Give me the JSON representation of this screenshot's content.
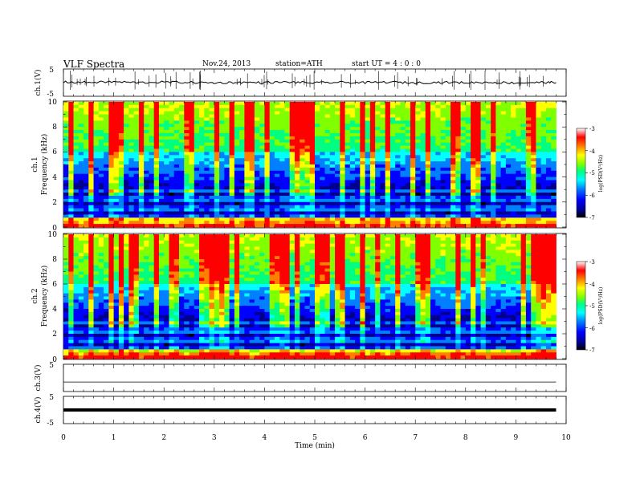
{
  "header": {
    "title": "VLF  Spectra",
    "date": "Nov.24, 2013",
    "station": "station=ATH",
    "start": "start  UT  =   4  : 0  : 0"
  },
  "colors": {
    "colormap": [
      "#000000",
      "#00008b",
      "#0000ff",
      "#0080ff",
      "#00ffff",
      "#00ff80",
      "#80ff00",
      "#ffff00",
      "#ff8000",
      "#ff0000",
      "#ffffff"
    ]
  },
  "chart_data": [
    {
      "type": "line",
      "panel": "ch1",
      "ylabel": "ch.1(V)",
      "ylim": [
        -5,
        5
      ],
      "yticks": [
        "5",
        "-5"
      ],
      "x": [
        0,
        0.5,
        1,
        1.5,
        2,
        2.5,
        3,
        3.5,
        4,
        4.5,
        5,
        5.5,
        6,
        6.5,
        7,
        7.5,
        8,
        8.5,
        9,
        9.5,
        9.8
      ],
      "values": [
        0.2,
        0.1,
        0.3,
        0.0,
        0.2,
        0.1,
        -0.1,
        0.1,
        0.0,
        0.2,
        -0.1,
        0.1,
        0.0,
        0.2,
        -0.1,
        0.1,
        0.0,
        0.1,
        -0.1,
        0.1,
        0.0
      ]
    },
    {
      "type": "heatmap",
      "panel": "ch1-spectrogram",
      "ylabel_channel": "ch.1",
      "ylabel": "Frequency  (kHz)",
      "ylim": [
        0,
        10
      ],
      "yticks": [
        "0",
        "2",
        "4",
        "6",
        "8",
        "10"
      ],
      "xlim": [
        0,
        9.8
      ],
      "colorbar_label": "log(PSD(V²/Hz)",
      "colorbar_range": [
        -7,
        -3
      ],
      "colorbar_ticks": [
        "-3",
        "-4",
        "-5",
        "-6",
        "-7"
      ]
    },
    {
      "type": "heatmap",
      "panel": "ch2-spectrogram",
      "ylabel_channel": "ch.2",
      "ylabel": "Frequency  (kHz)",
      "ylim": [
        0,
        10
      ],
      "yticks": [
        "0",
        "2",
        "4",
        "6",
        "8",
        "10"
      ],
      "xlim": [
        0,
        9.8
      ],
      "colorbar_label": "log(PSD(V²/Hz)",
      "colorbar_range": [
        -7,
        -3
      ],
      "colorbar_ticks": [
        "-3",
        "-4",
        "-5",
        "-6",
        "-7"
      ]
    },
    {
      "type": "line",
      "panel": "ch3",
      "ylabel": "ch.3(V)",
      "ylim": [
        -5,
        5
      ],
      "yticks": [
        "5"
      ],
      "x": [
        0,
        9.8
      ],
      "values": [
        -1.5,
        -1.5
      ]
    },
    {
      "type": "line",
      "panel": "ch4",
      "ylabel": "ch.4(V)",
      "ylim": [
        -5,
        5
      ],
      "yticks": [
        "5",
        "-5"
      ],
      "x": [
        0,
        9.8
      ],
      "values": [
        0,
        0
      ]
    }
  ],
  "xaxis": {
    "label": "Time  (min)",
    "range": [
      0,
      10
    ],
    "ticks": [
      "0",
      "1",
      "2",
      "3",
      "4",
      "5",
      "6",
      "7",
      "8",
      "9",
      "10"
    ]
  }
}
